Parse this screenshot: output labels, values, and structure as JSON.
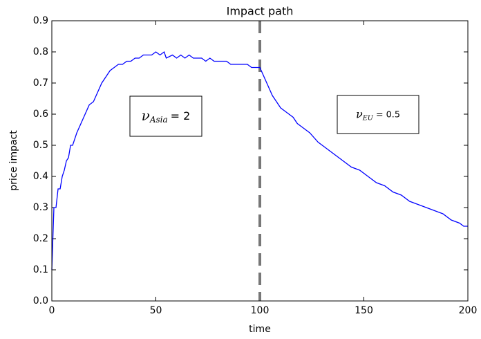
{
  "chart_data": {
    "type": "line",
    "title": "Impact path",
    "x_label": "time",
    "y_label": "price impact",
    "xlim": [
      0,
      200
    ],
    "ylim": [
      0,
      0.9
    ],
    "xticks": [
      0,
      50,
      100,
      150,
      200
    ],
    "yticks": [
      {
        "value": 0,
        "label": "0.0"
      },
      0.1,
      0.2,
      0.3,
      0.4,
      0.5,
      0.6,
      0.7,
      0.8,
      0.9
    ],
    "vline": 100,
    "annotations": [
      {
        "symbol": "ν",
        "subscript": "Asia",
        "rest": "= 2"
      },
      {
        "symbol": "ν",
        "subscript": "EU",
        "rest": "= 0.5"
      }
    ],
    "x": [
      0,
      1,
      2,
      3,
      4,
      5,
      6,
      7,
      8,
      9,
      10,
      12,
      14,
      16,
      18,
      20,
      22,
      24,
      26,
      28,
      30,
      32,
      34,
      36,
      38,
      40,
      42,
      44,
      46,
      48,
      50,
      52,
      54,
      55,
      58,
      60,
      62,
      64,
      66,
      68,
      70,
      72,
      74,
      76,
      78,
      80,
      82,
      84,
      86,
      88,
      90,
      92,
      94,
      96,
      98,
      100,
      102,
      104,
      106,
      108,
      110,
      112,
      114,
      116,
      118,
      120,
      124,
      128,
      132,
      136,
      140,
      144,
      148,
      152,
      156,
      160,
      164,
      168,
      172,
      176,
      180,
      184,
      188,
      192,
      196,
      198,
      200
    ],
    "series": [
      {
        "name": "impact",
        "color": "#0000ff",
        "values": [
          0.1,
          0.3,
          0.3,
          0.36,
          0.36,
          0.4,
          0.42,
          0.45,
          0.46,
          0.5,
          0.5,
          0.54,
          0.57,
          0.6,
          0.63,
          0.64,
          0.67,
          0.7,
          0.72,
          0.74,
          0.75,
          0.76,
          0.76,
          0.77,
          0.77,
          0.78,
          0.78,
          0.79,
          0.79,
          0.79,
          0.8,
          0.79,
          0.8,
          0.78,
          0.79,
          0.78,
          0.79,
          0.78,
          0.79,
          0.78,
          0.78,
          0.78,
          0.77,
          0.78,
          0.77,
          0.77,
          0.77,
          0.77,
          0.76,
          0.76,
          0.76,
          0.76,
          0.76,
          0.75,
          0.75,
          0.75,
          0.72,
          0.69,
          0.66,
          0.64,
          0.62,
          0.61,
          0.6,
          0.59,
          0.57,
          0.56,
          0.54,
          0.51,
          0.49,
          0.47,
          0.45,
          0.43,
          0.42,
          0.4,
          0.38,
          0.37,
          0.35,
          0.34,
          0.32,
          0.31,
          0.3,
          0.29,
          0.28,
          0.26,
          0.25,
          0.24,
          0.24
        ]
      }
    ]
  }
}
